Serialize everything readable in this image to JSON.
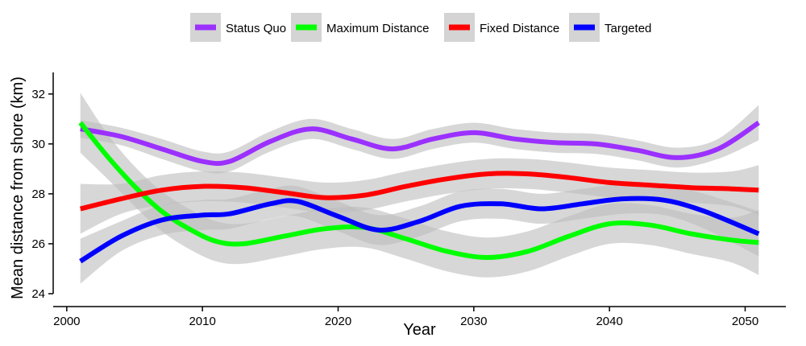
{
  "chart_data": {
    "type": "line",
    "xlabel": "Year",
    "ylabel": "Mean distance from shore (km)",
    "xlim": [
      1999,
      2053
    ],
    "ylim": [
      24,
      32.8
    ],
    "xticks": [
      2000,
      2010,
      2020,
      2030,
      2040,
      2050
    ],
    "yticks": [
      24,
      26,
      28,
      30,
      32
    ],
    "legend_position": "top",
    "grid": false,
    "series": [
      {
        "name": "Status Quo",
        "color": "#9b30ff",
        "x": [
          2001,
          2004,
          2007,
          2010,
          2012,
          2015,
          2018,
          2021,
          2024,
          2027,
          2030,
          2033,
          2036,
          2039,
          2042,
          2045,
          2048,
          2051
        ],
        "y": [
          30.6,
          30.3,
          29.8,
          29.3,
          29.3,
          30.1,
          30.6,
          30.2,
          29.8,
          30.2,
          30.45,
          30.2,
          30.05,
          30.0,
          29.75,
          29.45,
          29.8,
          30.85
        ],
        "ci": [
          0.35,
          0.35,
          0.4,
          0.4,
          0.4,
          0.4,
          0.4,
          0.4,
          0.4,
          0.4,
          0.4,
          0.4,
          0.4,
          0.4,
          0.4,
          0.4,
          0.4,
          0.7
        ]
      },
      {
        "name": "Maximum Distance",
        "color": "#00ff00",
        "x": [
          2001,
          2003,
          2005,
          2007,
          2009,
          2011,
          2013,
          2016,
          2019,
          2022,
          2025,
          2028,
          2031,
          2034,
          2037,
          2040,
          2043,
          2046,
          2049,
          2051
        ],
        "y": [
          30.85,
          29.5,
          28.3,
          27.3,
          26.6,
          26.1,
          26.0,
          26.3,
          26.6,
          26.65,
          26.2,
          25.7,
          25.45,
          25.7,
          26.3,
          26.8,
          26.75,
          26.4,
          26.15,
          26.05
        ],
        "ci": [
          1.2,
          0.9,
          0.8,
          0.8,
          0.8,
          0.8,
          0.8,
          0.8,
          0.8,
          0.8,
          0.8,
          0.8,
          0.8,
          0.8,
          0.8,
          0.8,
          0.8,
          0.8,
          0.9,
          1.3
        ]
      },
      {
        "name": "Fixed Distance",
        "color": "#ff0000",
        "x": [
          2001,
          2004,
          2007,
          2010,
          2013,
          2016,
          2019,
          2022,
          2025,
          2028,
          2031,
          2034,
          2037,
          2040,
          2043,
          2046,
          2049,
          2051
        ],
        "y": [
          27.4,
          27.8,
          28.15,
          28.3,
          28.25,
          28.05,
          27.85,
          27.95,
          28.3,
          28.6,
          28.8,
          28.8,
          28.65,
          28.45,
          28.35,
          28.25,
          28.2,
          28.15
        ],
        "ci": [
          1.0,
          0.6,
          0.6,
          0.6,
          0.6,
          0.6,
          0.6,
          0.6,
          0.6,
          0.6,
          0.6,
          0.6,
          0.6,
          0.6,
          0.6,
          0.6,
          0.7,
          1.0
        ]
      },
      {
        "name": "Targeted",
        "color": "#0000ff",
        "x": [
          2001,
          2004,
          2007,
          2010,
          2012,
          2015,
          2017,
          2020,
          2023,
          2026,
          2029,
          2032,
          2035,
          2038,
          2041,
          2044,
          2047,
          2051
        ],
        "y": [
          25.3,
          26.3,
          26.95,
          27.15,
          27.2,
          27.6,
          27.7,
          27.1,
          26.55,
          26.9,
          27.5,
          27.6,
          27.4,
          27.6,
          27.8,
          27.75,
          27.3,
          26.4
        ],
        "ci": [
          0.9,
          0.6,
          0.6,
          0.6,
          0.6,
          0.6,
          0.6,
          0.6,
          0.6,
          0.6,
          0.6,
          0.6,
          0.6,
          0.6,
          0.6,
          0.6,
          0.7,
          0.9
        ]
      }
    ]
  }
}
